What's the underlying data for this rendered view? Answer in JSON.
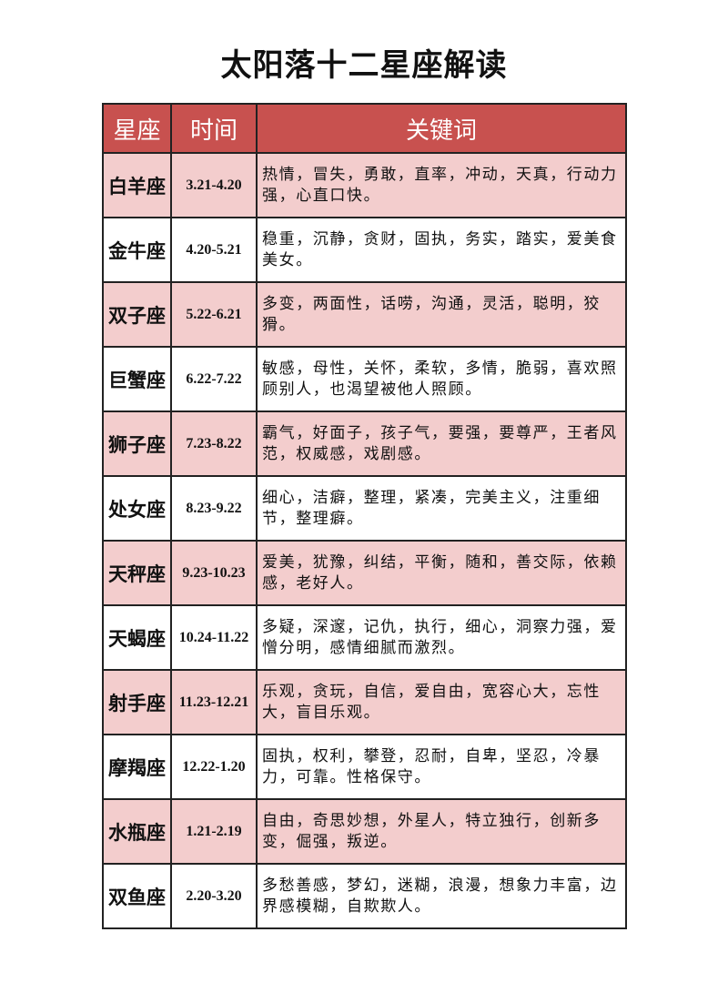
{
  "header": {
    "title": "太阳落十二星座解读"
  },
  "table": {
    "columns": [
      "星座",
      "时间",
      "关键词"
    ],
    "rows": [
      [
        "白羊座",
        "3.21-4.20",
        "热情，冒失，勇敢，直率，冲动，天真，行动力强，心直口快。"
      ],
      [
        "金牛座",
        "4.20-5.21",
        "稳重，沉静，贪财，固执，务实，踏实，爱美食美女。"
      ],
      [
        "双子座",
        "5.22-6.21",
        "多变，两面性，话唠，沟通，灵活，聪明，狡猾。"
      ],
      [
        "巨蟹座",
        "6.22-7.22",
        "敏感，母性，关怀，柔软，多情，脆弱，喜欢照顾别人，也渴望被他人照顾。"
      ],
      [
        "狮子座",
        "7.23-8.22",
        "霸气，好面子，孩子气，要强，要尊严，王者风范，权威感，戏剧感。"
      ],
      [
        "处女座",
        "8.23-9.22",
        "细心，洁癖，整理，紧凑，完美主义，注重细节，整理癖。"
      ],
      [
        "天秤座",
        "9.23-10.23",
        "爱美，犹豫，纠结，平衡，随和，善交际，依赖感，老好人。"
      ],
      [
        "天蝎座",
        "10.24-11.22",
        "多疑，深邃，记仇，执行，细心，洞察力强，爱憎分明，感情细腻而激烈。"
      ],
      [
        "射手座",
        "11.23-12.21",
        "乐观，贪玩，自信，爱自由，宽容心大，忘性大，盲目乐观。"
      ],
      [
        "摩羯座",
        "12.22-1.20",
        "固执，权利，攀登，忍耐，自卑，坚忍，冷暴力，可靠。性格保守。"
      ],
      [
        "水瓶座",
        "1.21-2.19",
        "自由，奇思妙想，外星人，特立独行，创新多变，倔强，叛逆。"
      ],
      [
        "双鱼座",
        "2.20-3.20",
        "多愁善感，梦幻，迷糊，浪漫，想象力丰富，边界感模糊，自欺欺人。"
      ]
    ]
  }
}
